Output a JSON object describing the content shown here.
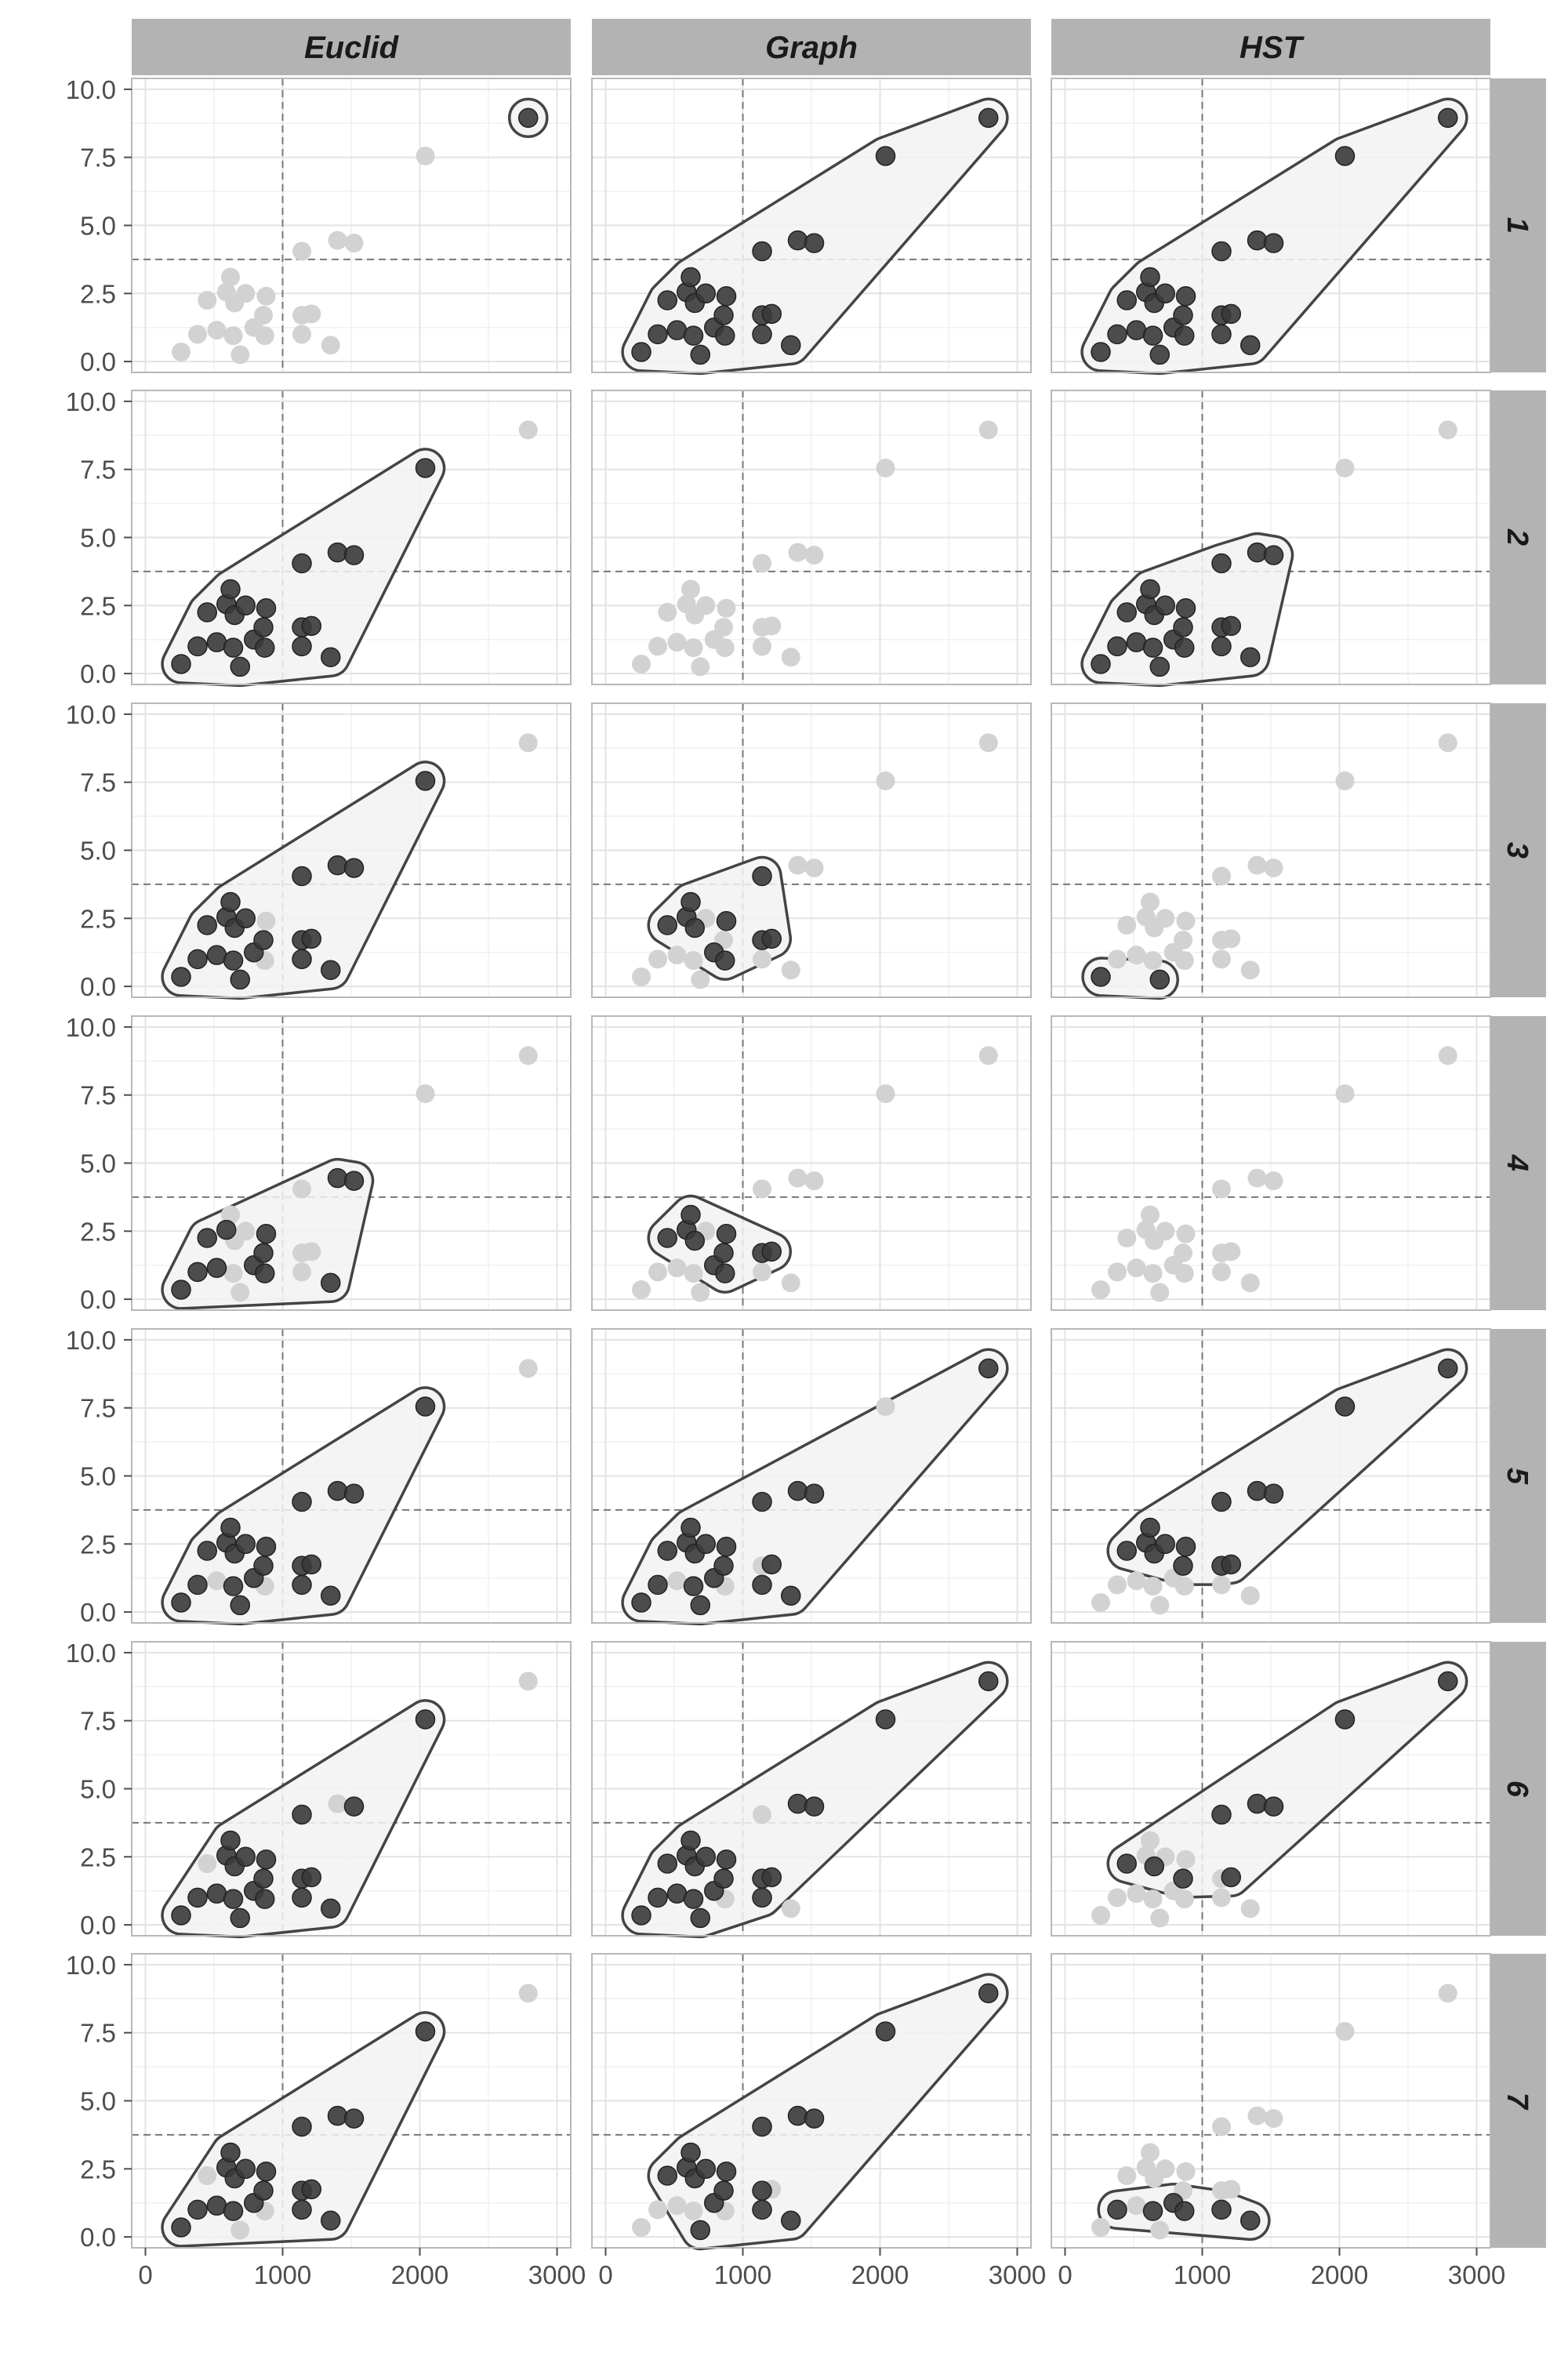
{
  "chart_data": {
    "type": "scatter",
    "facet_columns": [
      "Euclid",
      "Graph",
      "HST"
    ],
    "facet_rows": [
      "1",
      "2",
      "3",
      "4",
      "5",
      "6",
      "7"
    ],
    "xlim": [
      -100,
      3100
    ],
    "ylim": [
      -0.4,
      10.4
    ],
    "x_ticks": [
      0,
      1000,
      2000,
      3000
    ],
    "x_tick_labels": [
      "0",
      "1000",
      "2000",
      "3000"
    ],
    "y_ticks": [
      0,
      2.5,
      5,
      7.5,
      10
    ],
    "y_tick_labels": [
      "0.0",
      "2.5",
      "5.0",
      "7.5",
      "10.0"
    ],
    "vline_x": 1000,
    "hline_y": 3.75,
    "grid": true,
    "colors": {
      "strip": "#b3b3b3",
      "panel_border": "#b8b8b8",
      "grid_major": "#e3e3e3",
      "grid_minor": "#f1f1f1",
      "point_selected": "#3a3a3a",
      "point_unselected": "#d2d2d2",
      "hull_fill": "#f2f2f2",
      "hull_stroke": "#444444",
      "ref_line": "#777777",
      "tick_text": "#4d4d4d"
    },
    "points": [
      {
        "x": 260,
        "y": 0.35
      },
      {
        "x": 380,
        "y": 1.0
      },
      {
        "x": 450,
        "y": 2.25
      },
      {
        "x": 520,
        "y": 1.15
      },
      {
        "x": 590,
        "y": 2.55
      },
      {
        "x": 620,
        "y": 3.1
      },
      {
        "x": 640,
        "y": 0.95
      },
      {
        "x": 650,
        "y": 2.15
      },
      {
        "x": 690,
        "y": 0.25
      },
      {
        "x": 730,
        "y": 2.5
      },
      {
        "x": 790,
        "y": 1.25
      },
      {
        "x": 860,
        "y": 1.7
      },
      {
        "x": 870,
        "y": 0.95
      },
      {
        "x": 880,
        "y": 2.4
      },
      {
        "x": 1140,
        "y": 4.05
      },
      {
        "x": 1140,
        "y": 1.7
      },
      {
        "x": 1140,
        "y": 1.0
      },
      {
        "x": 1210,
        "y": 1.75
      },
      {
        "x": 1350,
        "y": 0.6
      },
      {
        "x": 1400,
        "y": 4.45
      },
      {
        "x": 1520,
        "y": 4.35
      },
      {
        "x": 2040,
        "y": 7.55
      },
      {
        "x": 2790,
        "y": 8.95
      }
    ],
    "panels": [
      {
        "row": "1",
        "col": "Euclid",
        "selected": [
          22
        ]
      },
      {
        "row": "1",
        "col": "Graph",
        "selected": [
          0,
          1,
          2,
          3,
          4,
          5,
          6,
          7,
          8,
          9,
          10,
          11,
          12,
          13,
          14,
          15,
          16,
          17,
          18,
          19,
          20,
          21,
          22
        ]
      },
      {
        "row": "1",
        "col": "HST",
        "selected": [
          0,
          1,
          2,
          3,
          4,
          5,
          6,
          7,
          8,
          9,
          10,
          11,
          12,
          13,
          14,
          15,
          16,
          17,
          18,
          19,
          20,
          21,
          22
        ]
      },
      {
        "row": "2",
        "col": "Euclid",
        "selected": [
          0,
          1,
          2,
          3,
          4,
          5,
          6,
          7,
          8,
          9,
          10,
          11,
          12,
          13,
          14,
          15,
          16,
          17,
          18,
          19,
          20,
          21
        ]
      },
      {
        "row": "2",
        "col": "Graph",
        "selected": []
      },
      {
        "row": "2",
        "col": "HST",
        "selected": [
          0,
          1,
          2,
          3,
          4,
          5,
          6,
          7,
          8,
          9,
          10,
          11,
          12,
          13,
          14,
          15,
          16,
          17,
          18,
          19,
          20
        ]
      },
      {
        "row": "3",
        "col": "Euclid",
        "selected": [
          0,
          1,
          2,
          3,
          4,
          5,
          6,
          7,
          8,
          9,
          10,
          11,
          14,
          15,
          16,
          17,
          18,
          19,
          20,
          21
        ]
      },
      {
        "row": "3",
        "col": "Graph",
        "selected": [
          2,
          4,
          5,
          7,
          10,
          12,
          13,
          14,
          15,
          17
        ]
      },
      {
        "row": "3",
        "col": "HST",
        "selected": [
          0,
          8
        ]
      },
      {
        "row": "4",
        "col": "Euclid",
        "selected": [
          0,
          1,
          2,
          3,
          4,
          10,
          11,
          12,
          13,
          18,
          19,
          20
        ]
      },
      {
        "row": "4",
        "col": "Graph",
        "selected": [
          2,
          4,
          5,
          7,
          10,
          11,
          12,
          13,
          15,
          17
        ]
      },
      {
        "row": "4",
        "col": "HST",
        "selected": []
      },
      {
        "row": "5",
        "col": "Euclid",
        "selected": [
          0,
          1,
          2,
          4,
          5,
          6,
          7,
          8,
          9,
          10,
          11,
          13,
          14,
          15,
          16,
          17,
          18,
          19,
          20,
          21
        ]
      },
      {
        "row": "5",
        "col": "Graph",
        "selected": [
          0,
          1,
          2,
          4,
          5,
          6,
          7,
          8,
          9,
          10,
          11,
          13,
          14,
          16,
          17,
          18,
          19,
          20,
          22
        ]
      },
      {
        "row": "5",
        "col": "HST",
        "selected": [
          2,
          4,
          5,
          7,
          9,
          11,
          13,
          14,
          15,
          17,
          19,
          20,
          21,
          22
        ]
      },
      {
        "row": "6",
        "col": "Euclid",
        "selected": [
          0,
          1,
          3,
          4,
          5,
          6,
          7,
          8,
          9,
          10,
          11,
          12,
          13,
          14,
          15,
          16,
          17,
          18,
          20,
          21
        ]
      },
      {
        "row": "6",
        "col": "Graph",
        "selected": [
          0,
          1,
          2,
          3,
          4,
          5,
          6,
          7,
          8,
          9,
          10,
          11,
          13,
          15,
          16,
          17,
          19,
          20,
          21,
          22
        ]
      },
      {
        "row": "6",
        "col": "HST",
        "selected": [
          2,
          7,
          11,
          14,
          17,
          19,
          20,
          21,
          22
        ]
      },
      {
        "row": "7",
        "col": "Euclid",
        "selected": [
          0,
          1,
          3,
          4,
          5,
          6,
          7,
          9,
          10,
          11,
          13,
          14,
          15,
          16,
          17,
          18,
          19,
          20,
          21
        ]
      },
      {
        "row": "7",
        "col": "Graph",
        "selected": [
          2,
          4,
          5,
          7,
          8,
          9,
          10,
          11,
          13,
          14,
          15,
          16,
          18,
          19,
          20,
          21,
          22
        ]
      },
      {
        "row": "7",
        "col": "HST",
        "selected": [
          1,
          6,
          10,
          12,
          16,
          18
        ]
      }
    ]
  }
}
